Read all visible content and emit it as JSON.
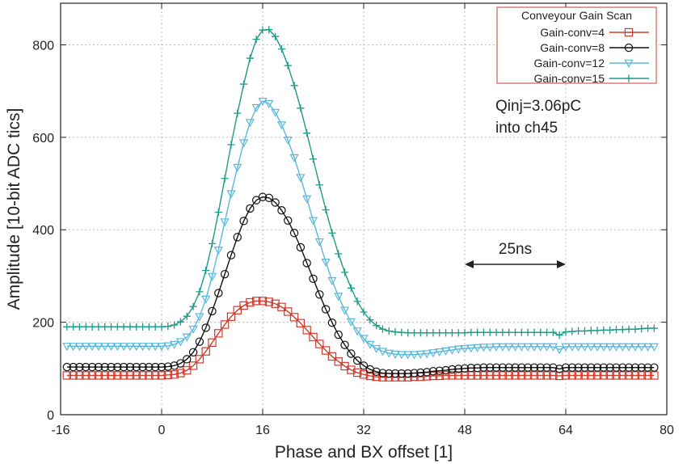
{
  "chart_data": {
    "type": "line",
    "title": "",
    "xlabel": "Phase and BX offset [1]",
    "ylabel": "Amplitude [10-bit ADC tics]",
    "xlim": [
      -16,
      80
    ],
    "ylim": [
      0,
      890
    ],
    "x_ticks": [
      -16,
      0,
      16,
      32,
      48,
      64,
      80
    ],
    "y_ticks": [
      0,
      200,
      400,
      600,
      800
    ],
    "grid": true,
    "legend": {
      "title": "Conveyour Gain Scan",
      "position": "top-right"
    },
    "x_start": -15,
    "x_step": 1,
    "series": [
      {
        "name": "Gain-conv=4",
        "color": "#d03a2c",
        "marker": "square",
        "values": [
          85,
          85,
          85,
          85,
          85,
          85,
          85,
          85,
          85,
          85,
          85,
          85,
          85,
          85,
          85,
          85,
          86,
          87,
          90,
          96,
          106,
          120,
          137,
          156,
          176,
          195,
          212,
          226,
          236,
          243,
          246,
          246,
          244,
          240,
          233,
          223,
          211,
          198,
          183,
          168,
          153,
          139,
          126,
          115,
          105,
          97,
          91,
          87,
          84,
          82,
          81,
          81,
          81,
          81,
          81,
          82,
          82,
          83,
          84,
          84,
          85,
          85,
          85,
          85,
          85,
          85,
          85,
          85,
          85,
          85,
          85,
          85,
          85,
          85,
          85,
          85,
          85,
          85,
          84,
          85,
          85,
          85,
          85,
          85,
          85,
          85,
          85,
          85,
          85,
          85,
          85,
          85,
          85,
          85
        ]
      },
      {
        "name": "Gain-conv=8",
        "color": "#111111",
        "marker": "circle",
        "values": [
          103,
          103,
          103,
          103,
          103,
          103,
          103,
          103,
          103,
          103,
          103,
          103,
          103,
          103,
          103,
          103,
          104,
          106,
          111,
          120,
          135,
          158,
          188,
          224,
          263,
          304,
          345,
          384,
          419,
          446,
          464,
          471,
          469,
          459,
          442,
          420,
          393,
          362,
          328,
          294,
          260,
          228,
          199,
          173,
          151,
          132,
          117,
          106,
          98,
          93,
          90,
          89,
          89,
          89,
          89,
          90,
          91,
          92,
          94,
          95,
          96,
          98,
          99,
          100,
          101,
          101,
          102,
          102,
          102,
          102,
          102,
          102,
          102,
          102,
          102,
          102,
          102,
          102,
          99,
          102,
          102,
          102,
          102,
          102,
          102,
          102,
          102,
          102,
          102,
          102,
          102,
          102,
          102,
          102
        ]
      },
      {
        "name": "Gain-conv=12",
        "color": "#5bb8dc",
        "marker": "triangle-down",
        "values": [
          148,
          148,
          148,
          148,
          148,
          148,
          148,
          148,
          148,
          148,
          148,
          148,
          148,
          148,
          148,
          148,
          149,
          152,
          158,
          168,
          185,
          212,
          250,
          299,
          356,
          417,
          478,
          535,
          588,
          632,
          664,
          678,
          673,
          654,
          627,
          594,
          556,
          513,
          467,
          420,
          374,
          330,
          290,
          256,
          226,
          201,
          181,
          165,
          152,
          143,
          137,
          133,
          131,
          130,
          130,
          130,
          131,
          132,
          134,
          136,
          138,
          140,
          142,
          143,
          144,
          145,
          146,
          146,
          147,
          147,
          147,
          147,
          147,
          147,
          147,
          147,
          147,
          147,
          141,
          147,
          147,
          147,
          147,
          147,
          147,
          147,
          147,
          147,
          147,
          147,
          147,
          147,
          147,
          147
        ]
      },
      {
        "name": "Gain-conv=15",
        "color": "#1f9a86",
        "marker": "plus",
        "values": [
          190,
          190,
          190,
          190,
          190,
          190,
          190,
          190,
          190,
          190,
          190,
          190,
          190,
          190,
          190,
          190,
          191,
          194,
          201,
          213,
          234,
          266,
          312,
          370,
          438,
          511,
          584,
          652,
          715,
          771,
          812,
          832,
          833,
          818,
          791,
          755,
          712,
          663,
          609,
          553,
          497,
          443,
          393,
          348,
          308,
          274,
          245,
          222,
          205,
          193,
          185,
          181,
          179,
          178,
          177,
          177,
          177,
          177,
          177,
          177,
          177,
          177,
          177,
          177,
          178,
          178,
          178,
          178,
          178,
          178,
          178,
          178,
          178,
          178,
          178,
          178,
          178,
          178,
          172,
          179,
          180,
          181,
          181,
          182,
          182,
          183,
          183,
          184,
          184,
          185,
          185,
          186,
          187,
          187
        ]
      }
    ],
    "annotations": {
      "qinj_line1": "Qinj=3.06pC",
      "qinj_line2": "into ch45",
      "span_label": "25ns",
      "span_x": [
        48,
        64
      ]
    }
  }
}
